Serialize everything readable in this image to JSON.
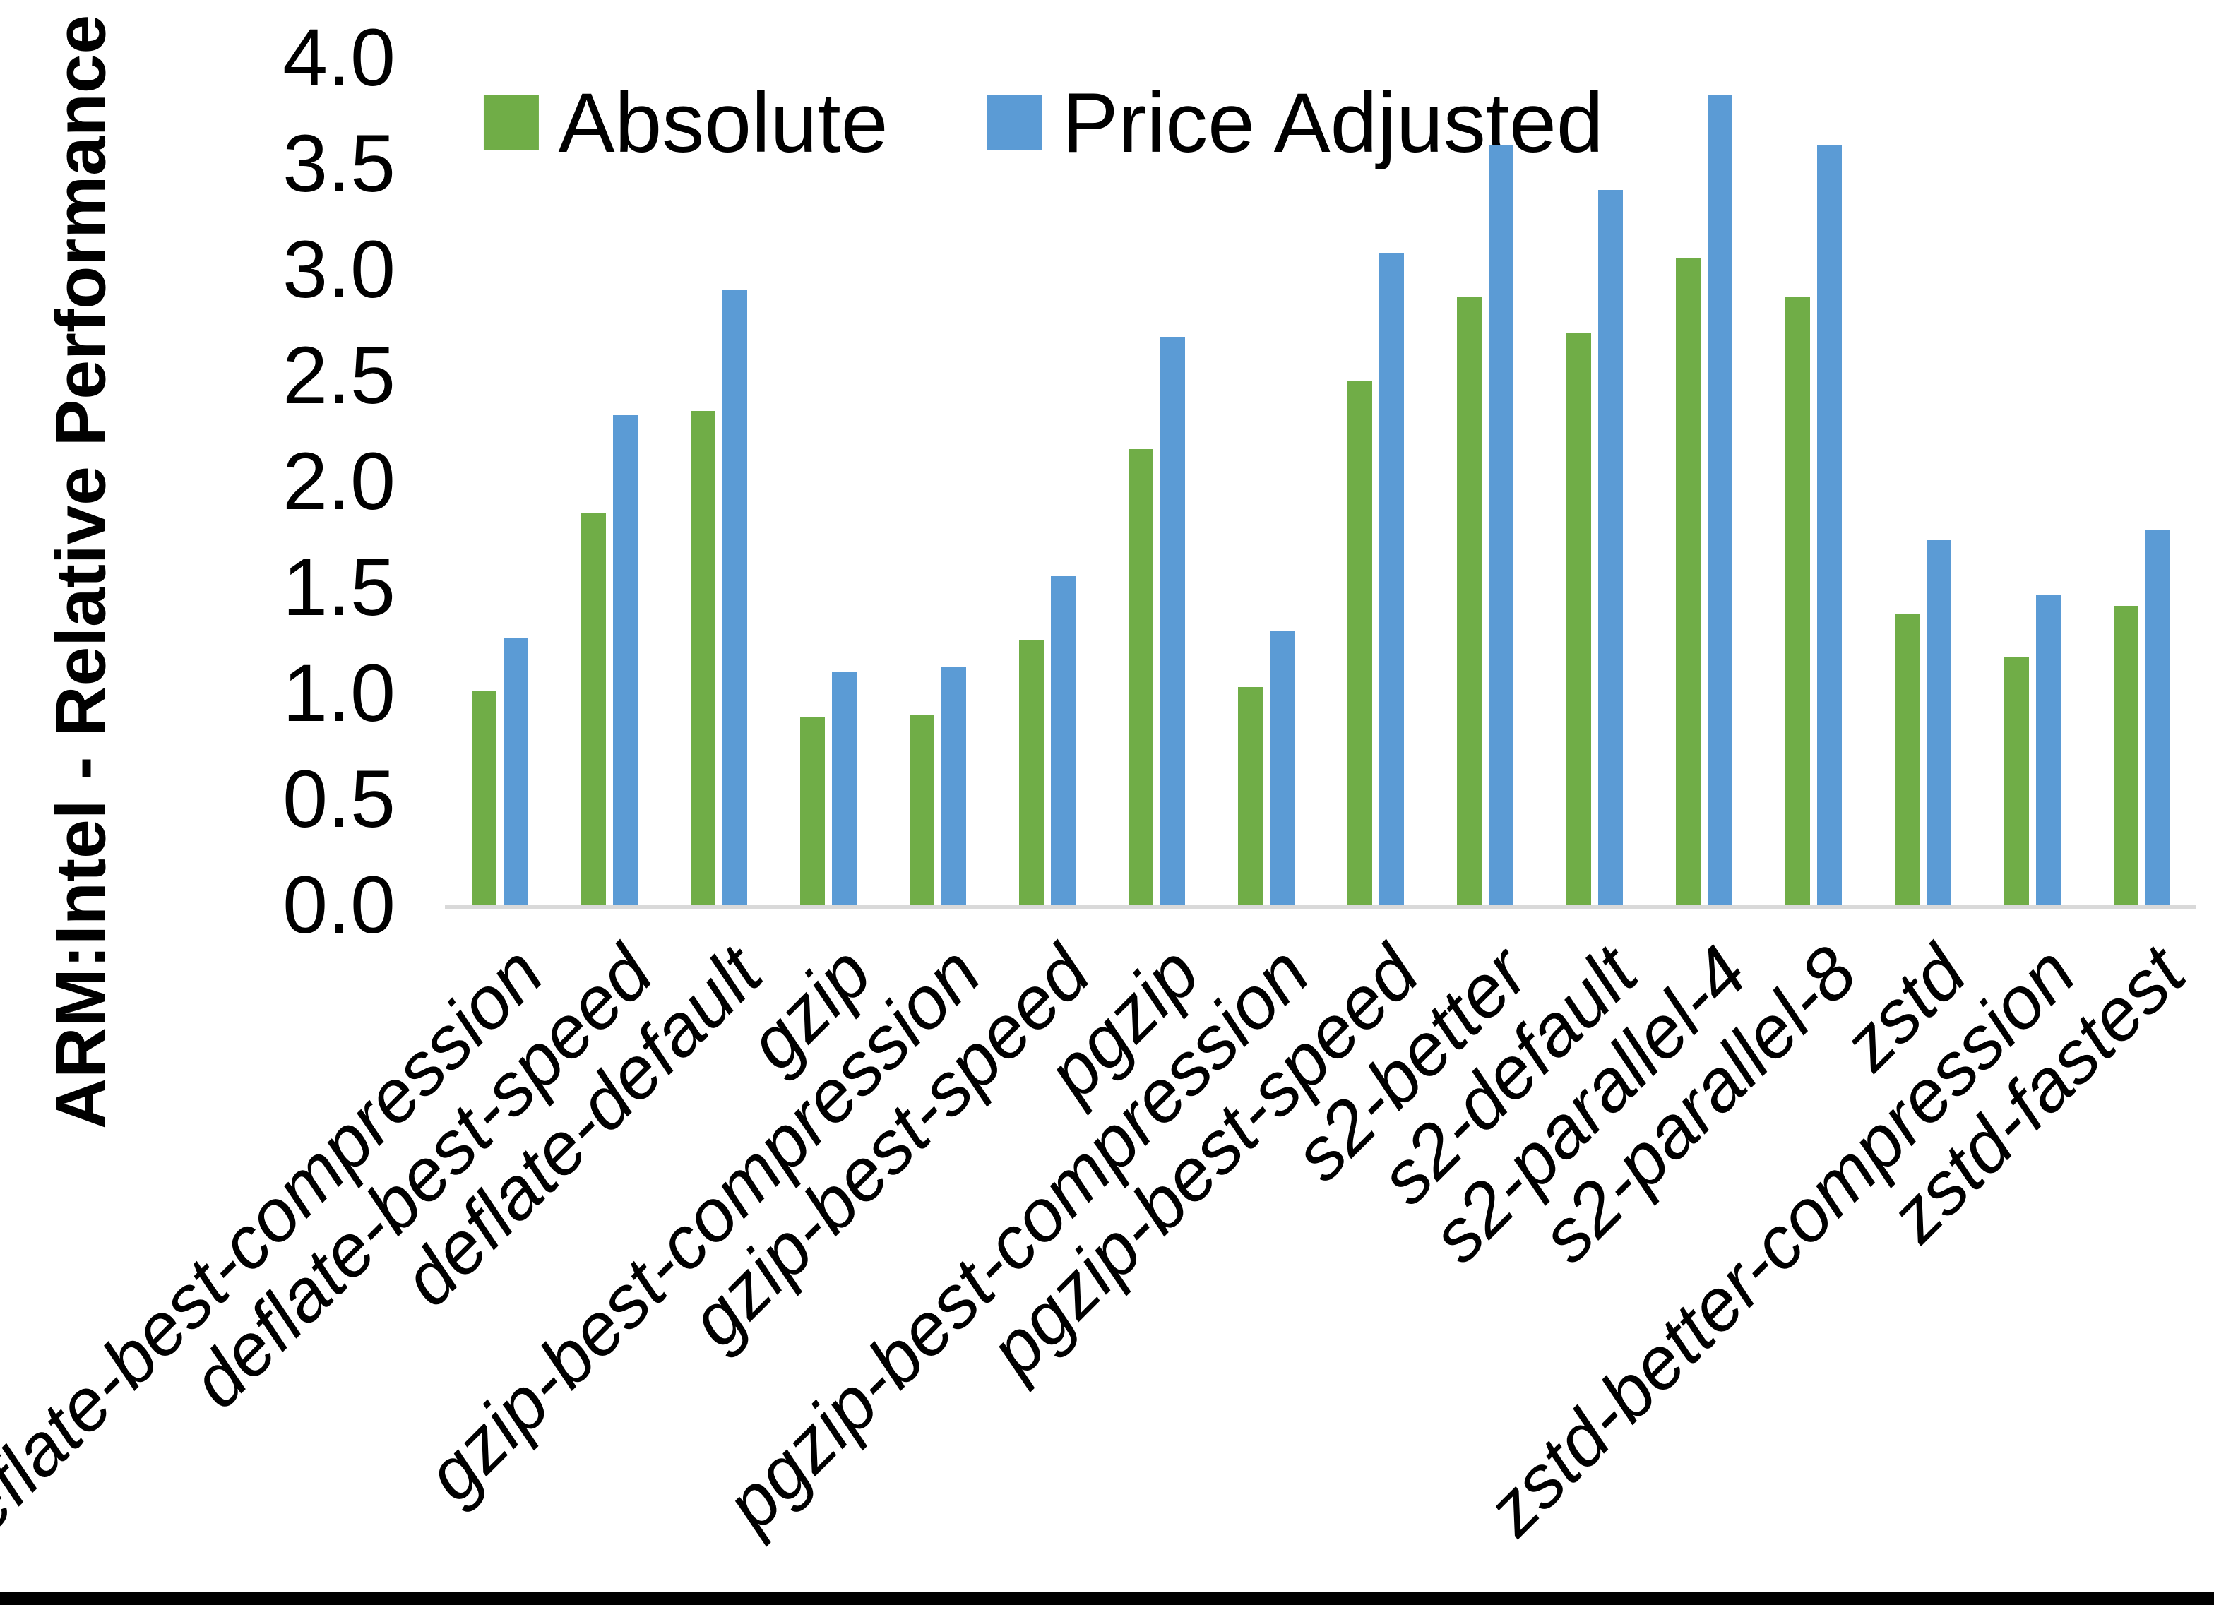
{
  "page": {
    "background_color": "#ffffff",
    "bottom_border_color": "#000000",
    "axis_line_color": "#d9d9d9"
  },
  "chart_data": {
    "type": "bar",
    "title": "",
    "xlabel": "",
    "ylabel": "ARM:Intel - Relative Performance",
    "ylim": [
      0.0,
      4.0
    ],
    "ytick_step": 0.5,
    "yticks": [
      "4.0",
      "3.5",
      "3.0",
      "2.5",
      "2.0",
      "1.5",
      "1.0",
      "0.5",
      "0.0"
    ],
    "grid": false,
    "legend_position": "top-center",
    "categories": [
      "deflate-best-compression",
      "deflate-best-speed",
      "deflate-default",
      "gzip",
      "gzip-best-compression",
      "gzip-best-speed",
      "pgzip",
      "pgzip-best-compression",
      "pgzip-best-speed",
      "s2-better",
      "s2-default",
      "s2-parallel-4",
      "s2-parallel-8",
      "zstd",
      "zstd-better-compression",
      "zstd-fastest"
    ],
    "series": [
      {
        "name": "Absolute",
        "color": "#70AD47",
        "values": [
          1.01,
          1.85,
          2.33,
          0.89,
          0.9,
          1.25,
          2.15,
          1.03,
          2.47,
          2.87,
          2.7,
          3.05,
          2.87,
          1.37,
          1.17,
          1.41
        ]
      },
      {
        "name": "Price Adjusted",
        "color": "#5B9BD5",
        "values": [
          1.26,
          2.31,
          2.9,
          1.1,
          1.12,
          1.55,
          2.68,
          1.29,
          3.07,
          3.58,
          3.37,
          3.82,
          3.58,
          1.72,
          1.46,
          1.77
        ]
      }
    ]
  }
}
